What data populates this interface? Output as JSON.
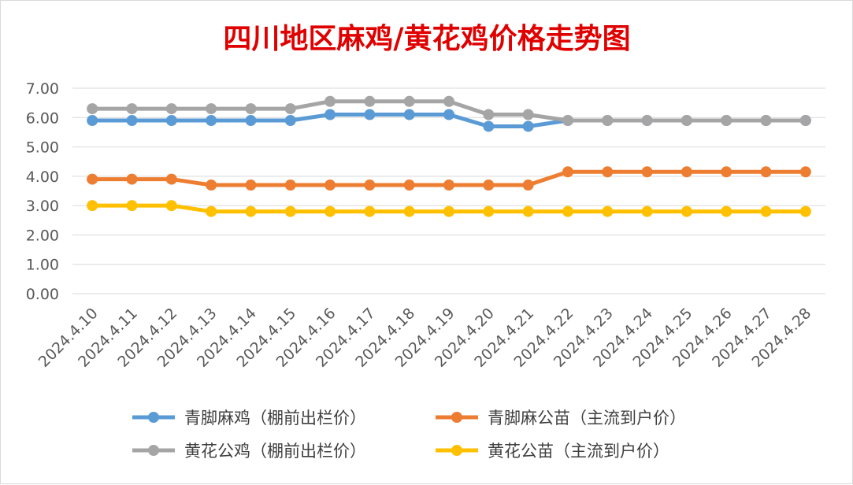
{
  "chart_data": {
    "type": "line",
    "title": "四川地区麻鸡/黄花鸡价格走势图",
    "xlabel": "",
    "ylabel": "",
    "categories": [
      "2024.4.10",
      "2024.4.11",
      "2024.4.12",
      "2024.4.13",
      "2024.4.14",
      "2024.4.15",
      "2024.4.16",
      "2024.4.17",
      "2024.4.18",
      "2024.4.19",
      "2024.4.20",
      "2024.4.21",
      "2024.4.22",
      "2024.4.23",
      "2024.4.24",
      "2024.4.25",
      "2024.4.26",
      "2024.4.27",
      "2024.4.28"
    ],
    "yticks": [
      "0.00",
      "1.00",
      "2.00",
      "3.00",
      "4.00",
      "5.00",
      "6.00",
      "7.00"
    ],
    "ylim": [
      0,
      7
    ],
    "grid": true,
    "legend_position": "bottom",
    "series": [
      {
        "name": "青脚麻鸡（棚前出栏价）",
        "color": "#5B9BD5",
        "values": [
          5.9,
          5.9,
          5.9,
          5.9,
          5.9,
          5.9,
          6.1,
          6.1,
          6.1,
          6.1,
          5.7,
          5.7,
          5.9,
          5.9,
          5.9,
          5.9,
          5.9,
          5.9,
          5.9
        ]
      },
      {
        "name": "青脚麻公苗（主流到户价）",
        "color": "#ED7D31",
        "values": [
          3.9,
          3.9,
          3.9,
          3.7,
          3.7,
          3.7,
          3.7,
          3.7,
          3.7,
          3.7,
          3.7,
          3.7,
          4.15,
          4.15,
          4.15,
          4.15,
          4.15,
          4.15,
          4.15
        ]
      },
      {
        "name": "黄花公鸡（棚前出栏价）",
        "color": "#A5A5A5",
        "values": [
          6.3,
          6.3,
          6.3,
          6.3,
          6.3,
          6.3,
          6.55,
          6.55,
          6.55,
          6.55,
          6.1,
          6.1,
          5.9,
          5.9,
          5.9,
          5.9,
          5.9,
          5.9,
          5.9
        ]
      },
      {
        "name": "黄花公苗（主流到户价）",
        "color": "#FFC000",
        "values": [
          3.0,
          3.0,
          3.0,
          2.8,
          2.8,
          2.8,
          2.8,
          2.8,
          2.8,
          2.8,
          2.8,
          2.8,
          2.8,
          2.8,
          2.8,
          2.8,
          2.8,
          2.8,
          2.8
        ]
      }
    ]
  }
}
